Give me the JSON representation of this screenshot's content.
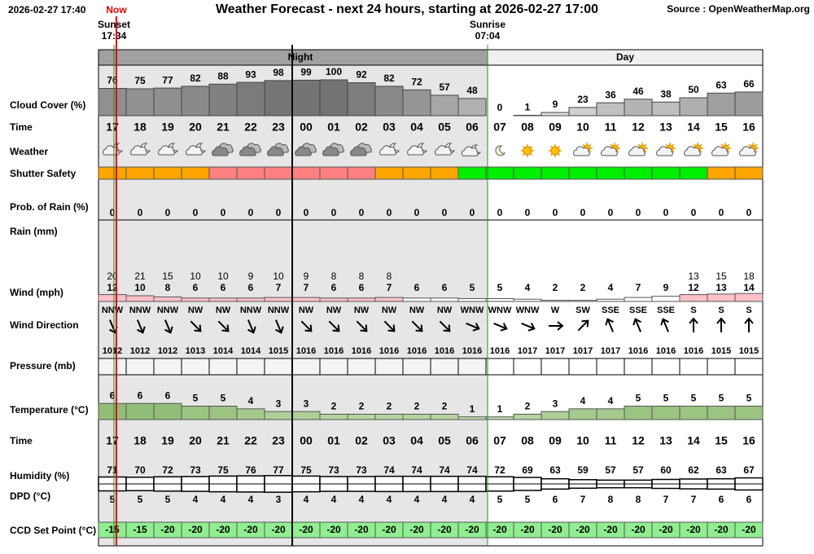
{
  "header": {
    "now_time": "2026-02-27 17:40",
    "now_label": "Now",
    "title": "Weather Forecast - next 24 hours, starting at 2026-02-27 17:00",
    "source": "Source : OpenWeatherMap.org"
  },
  "sun": {
    "sunset_label": "Sunset",
    "sunset_time": "17:34",
    "sunrise_label": "Sunrise",
    "sunrise_time": "07:04"
  },
  "periods": {
    "night": "Night",
    "day": "Day"
  },
  "row_labels": {
    "cloud_cover": "Cloud Cover (%)",
    "time": "Time",
    "weather": "Weather",
    "shutter_safety": "Shutter Safety",
    "rain_probability": "Prob. of Rain (%)",
    "rain": "Rain (mm)",
    "wind": "Wind (mph)",
    "wind_direction": "Wind Direction",
    "pressure": "Pressure (mb)",
    "temperature": "Temperature (°C)",
    "humidity": "Humidity (%)",
    "dpd": "DPD (°C)",
    "ccd_set_point": "CCD Set Point (°C)"
  },
  "hours": [
    "17",
    "18",
    "19",
    "20",
    "21",
    "22",
    "23",
    "00",
    "01",
    "02",
    "03",
    "04",
    "05",
    "06",
    "07",
    "08",
    "09",
    "10",
    "11",
    "12",
    "13",
    "14",
    "15",
    "16"
  ],
  "cloud_cover": [
    76,
    75,
    77,
    82,
    88,
    93,
    98,
    99,
    100,
    92,
    82,
    72,
    57,
    48,
    0,
    1,
    9,
    23,
    36,
    46,
    38,
    50,
    63,
    66
  ],
  "shutter_colors": [
    "#ffa500",
    "#ffa500",
    "#ffa500",
    "#ffa500",
    "#ff8080",
    "#ff8080",
    "#ff8080",
    "#ff8080",
    "#ff8080",
    "#ff8080",
    "#ffa500",
    "#ffa500",
    "#ffa500",
    "#00ee00",
    "#00ee00",
    "#00ee00",
    "#00ee00",
    "#00ee00",
    "#00ee00",
    "#00ee00",
    "#00ee00",
    "#00ee00",
    "#ffa500",
    "#ffa500"
  ],
  "rain_probability": [
    0,
    0,
    0,
    0,
    0,
    0,
    0,
    0,
    0,
    0,
    0,
    0,
    0,
    0,
    0,
    0,
    0,
    0,
    0,
    0,
    0,
    0,
    0,
    0
  ],
  "wind_gust": [
    20,
    21,
    15,
    10,
    10,
    9,
    10,
    9,
    8,
    8,
    8,
    null,
    null,
    null,
    null,
    null,
    null,
    null,
    null,
    null,
    null,
    13,
    15,
    18
  ],
  "wind_speed": [
    12,
    10,
    8,
    6,
    6,
    6,
    7,
    7,
    6,
    6,
    7,
    6,
    6,
    5,
    5,
    4,
    2,
    2,
    4,
    7,
    9,
    12,
    13,
    14
  ],
  "wind_direction": [
    "NNW",
    "NNW",
    "NNW",
    "NW",
    "NW",
    "NNW",
    "NNW",
    "NW",
    "NW",
    "NW",
    "NW",
    "NW",
    "NW",
    "WNW",
    "WNW",
    "WNW",
    "W",
    "SW",
    "SSE",
    "SSE",
    "SSE",
    "S",
    "S",
    "S"
  ],
  "wind_direction_deg": [
    337.5,
    337.5,
    337.5,
    315,
    315,
    337.5,
    337.5,
    315,
    315,
    315,
    315,
    315,
    315,
    292.5,
    292.5,
    292.5,
    270,
    225,
    157.5,
    157.5,
    157.5,
    180,
    180,
    180
  ],
  "pressure": [
    1012,
    1012,
    1012,
    1013,
    1014,
    1014,
    1015,
    1016,
    1016,
    1016,
    1016,
    1016,
    1016,
    1016,
    1016,
    1017,
    1017,
    1017,
    1017,
    1016,
    1016,
    1016,
    1015,
    1015
  ],
  "temperature": [
    6,
    6,
    6,
    5,
    5,
    4,
    3,
    3,
    2,
    2,
    2,
    2,
    2,
    1,
    1,
    2,
    3,
    4,
    4,
    5,
    5,
    5,
    5,
    5
  ],
  "humidity": [
    71,
    70,
    72,
    73,
    75,
    76,
    77,
    75,
    73,
    73,
    74,
    74,
    74,
    74,
    72,
    69,
    63,
    59,
    57,
    57,
    60,
    62,
    63,
    67
  ],
  "dpd": [
    5,
    5,
    5,
    4,
    4,
    4,
    3,
    4,
    4,
    4,
    4,
    4,
    4,
    4,
    5,
    5,
    6,
    7,
    8,
    8,
    7,
    7,
    6,
    6
  ],
  "ccd_set_point": [
    -15,
    -15,
    -20,
    -20,
    -20,
    -20,
    -20,
    -20,
    -20,
    -20,
    -20,
    -20,
    -20,
    -20,
    -20,
    -20,
    -20,
    -20,
    -20,
    -20,
    -20,
    -20,
    -20,
    -20
  ]
}
